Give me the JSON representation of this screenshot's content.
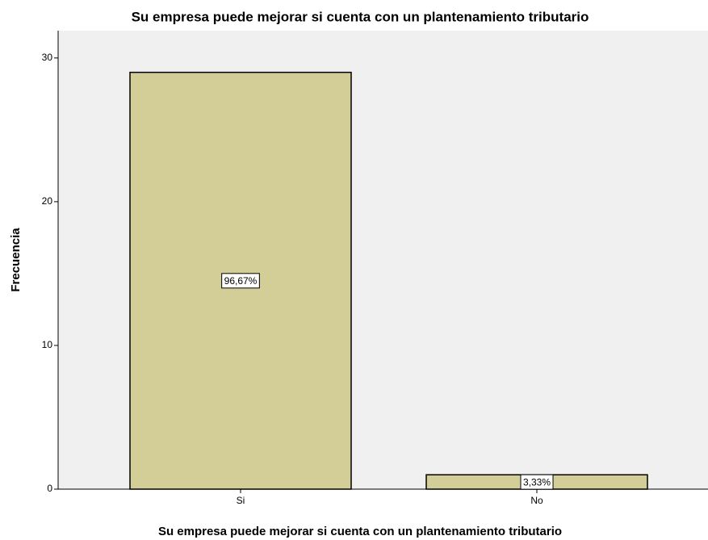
{
  "chart_data": {
    "type": "bar",
    "title": "Su empresa puede mejorar si cuenta con un plantenamiento tributario",
    "x_label": "Su empresa puede mejorar si cuenta con un plantenamiento tributario",
    "y_label": "Frecuencia",
    "categories": [
      "Si",
      "No"
    ],
    "values": [
      29,
      1
    ],
    "labels": [
      "96,67%",
      "3,33%"
    ],
    "color": "#d3ce97",
    "ylim": [
      0,
      31.9
    ],
    "yticks": [
      0,
      10,
      20,
      30
    ],
    "grid": false
  }
}
